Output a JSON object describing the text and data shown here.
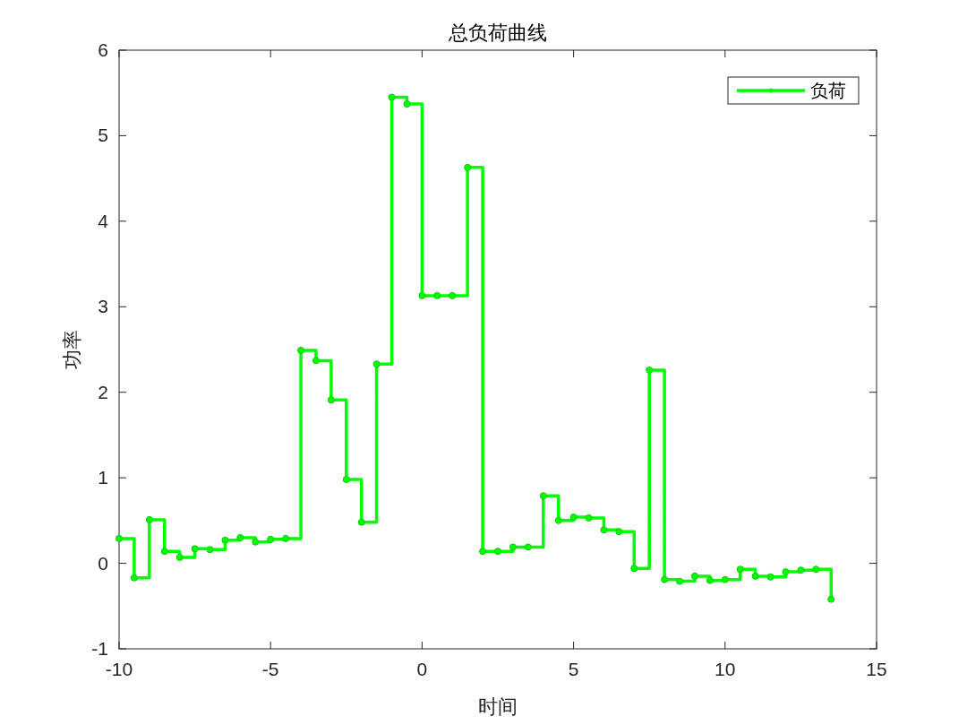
{
  "chart_data": {
    "type": "step",
    "title": "总负荷曲线",
    "xlabel": "时间",
    "ylabel": "功率",
    "x": [
      -10,
      -9.5,
      -9,
      -8.5,
      -8,
      -7.5,
      -7,
      -6.5,
      -6,
      -5.5,
      -5,
      -4.5,
      -4,
      -3.5,
      -3,
      -2.5,
      -2,
      -1.5,
      -1,
      -0.5,
      0,
      0.5,
      1,
      1.5,
      2,
      2.5,
      3,
      3.5,
      4,
      4.5,
      5,
      5.5,
      6,
      6.5,
      7,
      7.5,
      8,
      8.5,
      9,
      9.5,
      10,
      10.5,
      11,
      11.5,
      12,
      12.5,
      13,
      13.5
    ],
    "series": [
      {
        "name": "负荷",
        "color": "#00ff00",
        "values": [
          0.29,
          -0.17,
          0.51,
          0.14,
          0.07,
          0.17,
          0.16,
          0.27,
          0.3,
          0.25,
          0.28,
          0.29,
          2.49,
          2.37,
          1.91,
          0.98,
          0.48,
          2.33,
          5.45,
          5.37,
          3.13,
          3.13,
          3.13,
          4.63,
          0.14,
          0.14,
          0.19,
          0.19,
          0.79,
          0.5,
          0.54,
          0.53,
          0.39,
          0.37,
          -0.06,
          2.26,
          -0.19,
          -0.21,
          -0.15,
          -0.2,
          -0.19,
          -0.07,
          -0.15,
          -0.16,
          -0.1,
          -0.08,
          -0.07,
          -0.42
        ]
      }
    ],
    "xlim": [
      -10,
      15
    ],
    "ylim": [
      -1,
      6
    ],
    "xticks": [
      -10,
      -5,
      0,
      5,
      10,
      15
    ],
    "yticks": [
      -1,
      0,
      1,
      2,
      3,
      4,
      5,
      6
    ],
    "grid": false,
    "legend": "top right",
    "marker": "circle",
    "line_style": "solid"
  }
}
